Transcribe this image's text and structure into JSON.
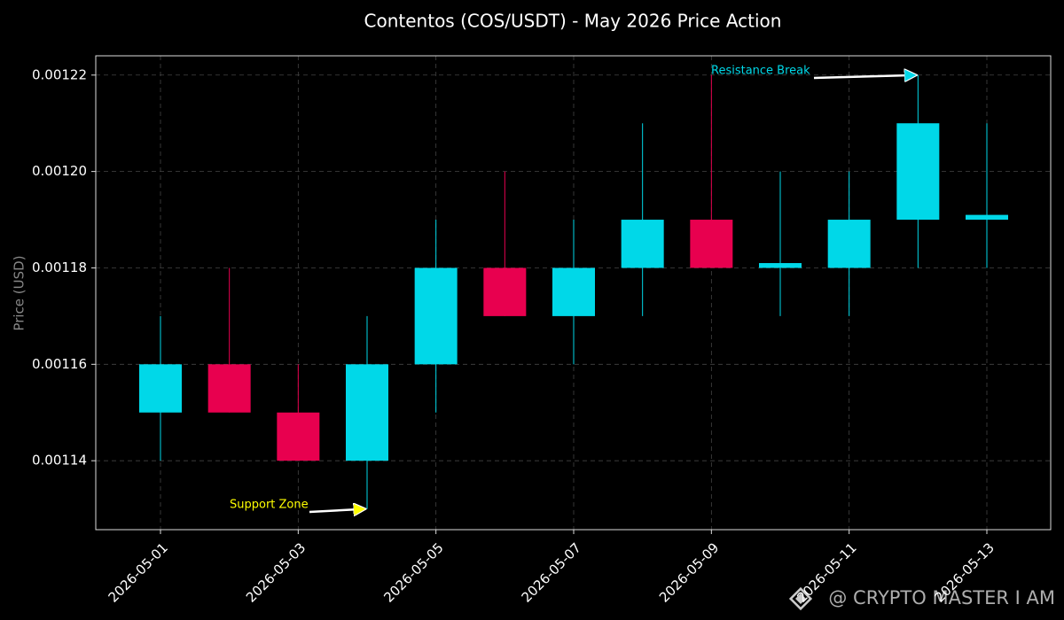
{
  "chart_data": {
    "type": "candlestick",
    "title": "Contentos (COS/USDT) - May 2026 Price Action",
    "ylabel": "Price (USD)",
    "categories": [
      "2026-05-01",
      null,
      "2026-05-03",
      null,
      "2026-05-05",
      null,
      "2026-05-07",
      null,
      "2026-05-09",
      null,
      "2026-05-11",
      null,
      "2026-05-13"
    ],
    "open": [
      0.00115,
      0.00116,
      0.00115,
      0.00114,
      0.00116,
      0.00118,
      0.00117,
      0.00118,
      0.00119,
      0.00118,
      0.00118,
      0.00119,
      0.00119
    ],
    "high": [
      0.00117,
      0.00118,
      0.00116,
      0.00117,
      0.00119,
      0.0012,
      0.00119,
      0.00121,
      0.00122,
      0.0012,
      0.0012,
      0.00122,
      0.00121
    ],
    "low": [
      0.00114,
      0.00115,
      0.00114,
      0.00113,
      0.00115,
      0.00117,
      0.00116,
      0.00117,
      0.00118,
      0.00117,
      0.00117,
      0.00118,
      0.00118
    ],
    "close": [
      0.00116,
      0.00115,
      0.00114,
      0.00116,
      0.00118,
      0.00117,
      0.00118,
      0.00119,
      0.00118,
      0.001181,
      0.00119,
      0.00121,
      0.001191
    ],
    "up_color": "#00d8e8",
    "down_color": "#e8004f",
    "ylim": [
      0.0011257,
      0.001224
    ],
    "yticks": [
      0.00114,
      0.00116,
      0.00118,
      {
        "value": 0.0012,
        "label": "0.00120"
      },
      0.00122
    ],
    "grid": true,
    "annotations": [
      {
        "text": "Support Zone",
        "color": "#ffff00"
      },
      {
        "text": "Resistance Break",
        "color": "#00d8e8"
      }
    ],
    "watermark": "@ CRYPTO MASTER I AM"
  }
}
